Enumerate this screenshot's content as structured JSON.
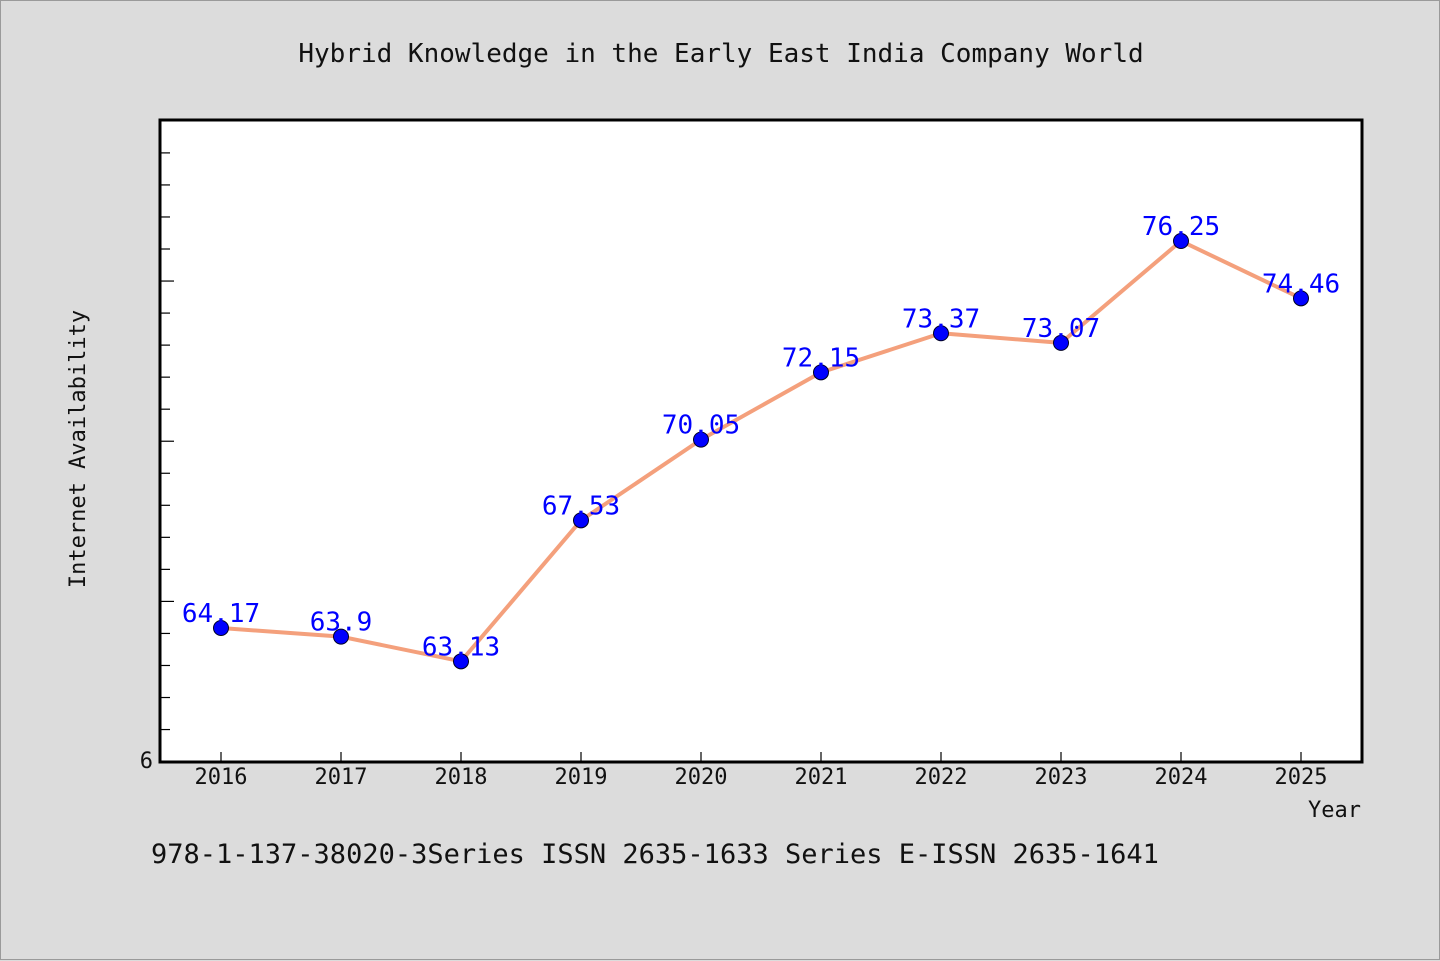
{
  "chart_data": {
    "type": "line",
    "title": "Hybrid Knowledge in the Early East India Company World",
    "xlabel": "Year",
    "ylabel": "Internet Availability",
    "categories": [
      "2016",
      "2017",
      "2018",
      "2019",
      "2020",
      "2021",
      "2022",
      "2023",
      "2024",
      "2025"
    ],
    "series": [
      {
        "values": [
          64.17,
          63.9,
          63.13,
          67.53,
          70.05,
          72.15,
          73.37,
          73.07,
          76.25,
          74.46
        ],
        "data_labels": [
          "64.17",
          "63.9",
          "63.13",
          "67.53",
          "70.05",
          "72.15",
          "73.37",
          "73.07",
          "76.25",
          "74.46"
        ],
        "line_color": "#f4a07c",
        "marker_color": "#0000ff"
      }
    ],
    "y_tick_labels": [
      "6"
    ],
    "ylim": [
      60,
      80
    ],
    "grid": false,
    "legend": "none",
    "data_label_color": "#0000ff"
  },
  "footer": {
    "text": "978-1-137-38020-3Series ISSN 2635-1633 Series E-ISSN 2635-1641"
  }
}
